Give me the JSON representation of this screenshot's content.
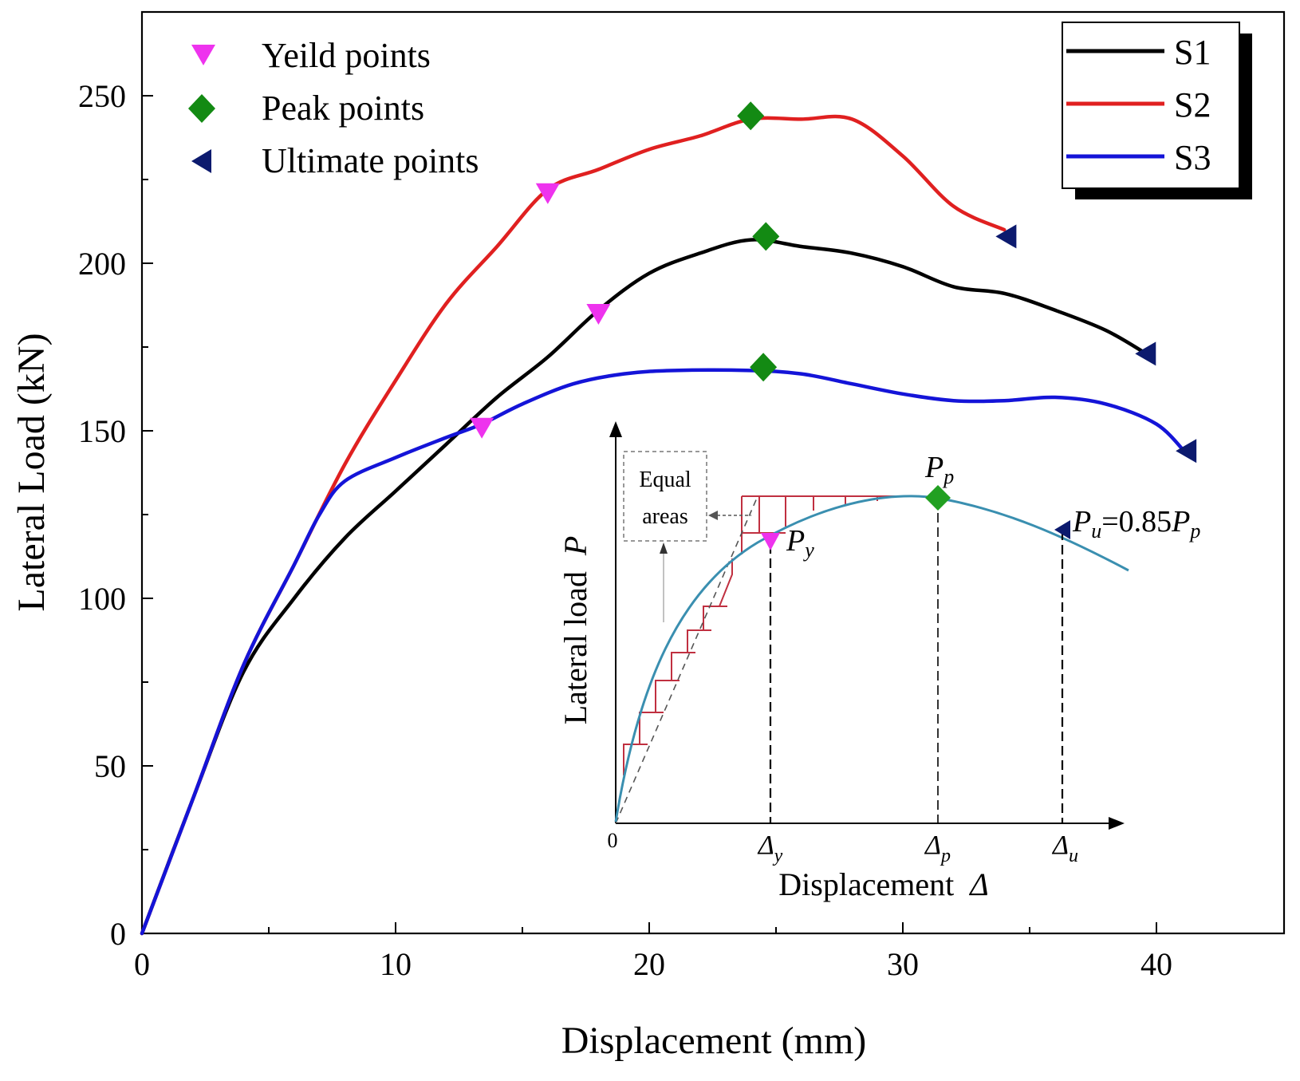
{
  "chart_data": {
    "type": "line",
    "title": "",
    "xlabel": "Displacement (mm)",
    "ylabel": "Lateral Load (kN)",
    "xlim": [
      0,
      45
    ],
    "ylim": [
      0,
      275
    ],
    "x_ticks": [
      0,
      10,
      20,
      30,
      40
    ],
    "y_ticks": [
      0,
      50,
      100,
      150,
      200,
      250
    ],
    "grid": false,
    "series": [
      {
        "name": "S1",
        "color": "#000000",
        "points": [
          [
            0,
            0
          ],
          [
            2,
            40
          ],
          [
            4,
            78
          ],
          [
            6,
            100
          ],
          [
            8,
            118
          ],
          [
            10,
            132
          ],
          [
            12,
            146
          ],
          [
            14,
            160
          ],
          [
            16,
            172
          ],
          [
            18,
            186
          ],
          [
            20,
            197
          ],
          [
            22,
            203
          ],
          [
            24,
            207
          ],
          [
            26,
            205
          ],
          [
            28,
            203
          ],
          [
            30,
            199
          ],
          [
            32,
            193
          ],
          [
            34,
            191
          ],
          [
            36,
            186
          ],
          [
            38,
            180
          ],
          [
            39.6,
            173
          ]
        ]
      },
      {
        "name": "S2",
        "color": "#e02020",
        "points": [
          [
            0,
            0
          ],
          [
            2,
            40
          ],
          [
            4,
            80
          ],
          [
            6,
            110
          ],
          [
            8,
            140
          ],
          [
            10,
            165
          ],
          [
            12,
            188
          ],
          [
            14,
            205
          ],
          [
            16,
            222
          ],
          [
            18,
            228
          ],
          [
            20,
            234
          ],
          [
            22,
            238
          ],
          [
            24,
            243
          ],
          [
            26,
            243
          ],
          [
            28,
            243
          ],
          [
            30,
            232
          ],
          [
            32,
            217
          ],
          [
            34,
            210
          ]
        ]
      },
      {
        "name": "S3",
        "color": "#1414d8",
        "points": [
          [
            0,
            0
          ],
          [
            2,
            40
          ],
          [
            4,
            80
          ],
          [
            6,
            110
          ],
          [
            7,
            125
          ],
          [
            8,
            135
          ],
          [
            10,
            142
          ],
          [
            12,
            148
          ],
          [
            13.4,
            152
          ],
          [
            15,
            158
          ],
          [
            17,
            164
          ],
          [
            19,
            167
          ],
          [
            21,
            168
          ],
          [
            24,
            168
          ],
          [
            26,
            167
          ],
          [
            28,
            164
          ],
          [
            30,
            161
          ],
          [
            32,
            159
          ],
          [
            34,
            159
          ],
          [
            36,
            160
          ],
          [
            38,
            158
          ],
          [
            40,
            152
          ],
          [
            41.2,
            143
          ]
        ]
      }
    ],
    "markers": {
      "legend_position": "top-left",
      "yield": {
        "label": "Yeild points",
        "color": "#ee33ee",
        "points": [
          [
            16,
            221
          ],
          [
            18,
            185
          ],
          [
            13.4,
            151
          ]
        ]
      },
      "peak": {
        "label": "Peak points",
        "color": "#138a13",
        "points": [
          [
            24,
            244
          ],
          [
            24.6,
            208
          ],
          [
            24.5,
            169
          ]
        ]
      },
      "ultimate": {
        "label": "Ultimate points",
        "color": "#0c1a6e",
        "points": [
          [
            34.1,
            208
          ],
          [
            39.6,
            173
          ],
          [
            41.2,
            144
          ]
        ]
      }
    },
    "series_legend_position": "top-right",
    "inset": {
      "type": "line",
      "xlabel": "Displacement",
      "xlabel_symbol": "Δ",
      "ylabel": "Lateral load",
      "ylabel_symbol": "P",
      "origin_label": "0",
      "x_tick_labels": [
        "Δy",
        "Δp",
        "Δu"
      ],
      "annotations": {
        "equal_areas": [
          "Equal",
          "areas"
        ],
        "peak_label": "Pp",
        "yield_label": "Py",
        "ultimate_label": "Pu=0.85Pp"
      }
    }
  }
}
